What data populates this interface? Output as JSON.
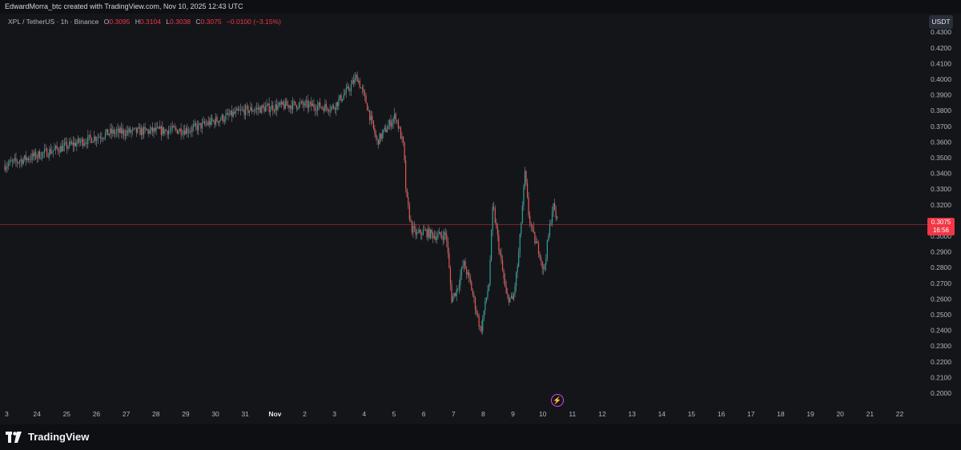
{
  "header": {
    "attribution": "EdwardMorra_btc created with TradingView.com, Nov 10, 2025 12:43 UTC"
  },
  "legend": {
    "symbol": "XPL / TetherUS · 1h · Binance",
    "o_label": "O",
    "o_value": "0.3095",
    "h_label": "H",
    "h_value": "0.3104",
    "l_label": "L",
    "l_value": "0.3038",
    "c_label": "C",
    "c_value": "0.3075",
    "change": "−0.0100 (−3.15%)"
  },
  "price_axis": {
    "currency": "USDT",
    "last_price": "0.3075",
    "countdown": "16:56",
    "labels": [
      "0.4300",
      "0.4200",
      "0.4100",
      "0.4000",
      "0.3900",
      "0.3800",
      "0.3700",
      "0.3600",
      "0.3500",
      "0.3400",
      "0.3300",
      "0.3200",
      "0.3100",
      "0.3000",
      "0.2900",
      "0.2800",
      "0.2700",
      "0.2600",
      "0.2500",
      "0.2400",
      "0.2300",
      "0.2200",
      "0.2100",
      "0.2000"
    ]
  },
  "time_axis": {
    "labels": [
      "3",
      "24",
      "25",
      "26",
      "27",
      "28",
      "29",
      "30",
      "31",
      "Nov",
      "2",
      "3",
      "4",
      "5",
      "6",
      "7",
      "8",
      "9",
      "10",
      "11",
      "12",
      "13",
      "14",
      "15",
      "16",
      "17",
      "18",
      "19",
      "20",
      "21",
      "22"
    ]
  },
  "footer": {
    "brand": "TradingView"
  },
  "colors": {
    "up": "#26a69a",
    "down": "#ef5350",
    "background": "#141519",
    "accent": "#f23645"
  },
  "chart_data": {
    "type": "candlestick",
    "interval": "1h",
    "symbol": "XPL/USDT",
    "ylim": [
      0.195,
      0.435
    ],
    "last_price": 0.3075,
    "path_points": [
      [
        0,
        0.345
      ],
      [
        8,
        0.366
      ],
      [
        14,
        0.368
      ],
      [
        18,
        0.38
      ],
      [
        22,
        0.384
      ],
      [
        24.7,
        0.382
      ],
      [
        26,
        0.395
      ],
      [
        26.5,
        0.402
      ],
      [
        27.2,
        0.385
      ],
      [
        28,
        0.36
      ],
      [
        29,
        0.372
      ],
      [
        29.4,
        0.377
      ],
      [
        30,
        0.357
      ],
      [
        30.2,
        0.325
      ],
      [
        30.6,
        0.305
      ],
      [
        31,
        0.301
      ],
      [
        31.5,
        0.303
      ],
      [
        32.5,
        0.3
      ],
      [
        33.2,
        0.301
      ],
      [
        33.6,
        0.26
      ],
      [
        34,
        0.266
      ],
      [
        34.5,
        0.283
      ],
      [
        35,
        0.27
      ],
      [
        35.8,
        0.239
      ],
      [
        36,
        0.251
      ],
      [
        36.4,
        0.27
      ],
      [
        36.7,
        0.32
      ],
      [
        37.2,
        0.29
      ],
      [
        37.7,
        0.262
      ],
      [
        38.2,
        0.259
      ],
      [
        38.6,
        0.285
      ],
      [
        39.1,
        0.34
      ],
      [
        39.4,
        0.312
      ],
      [
        39.8,
        0.298
      ],
      [
        40.2,
        0.29
      ],
      [
        40.5,
        0.277
      ],
      [
        40.8,
        0.296
      ],
      [
        41.2,
        0.32
      ],
      [
        41.5,
        0.31
      ]
    ]
  }
}
